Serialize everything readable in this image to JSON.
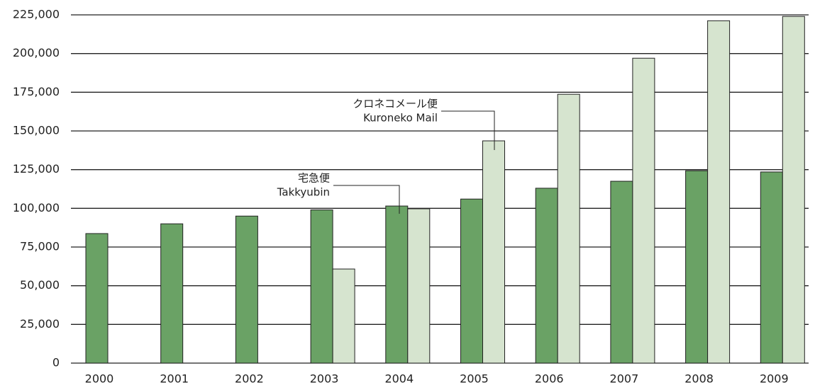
{
  "chart_data": {
    "type": "bar",
    "categories": [
      "2000",
      "2001",
      "2002",
      "2003",
      "2004",
      "2005",
      "2006",
      "2007",
      "2008",
      "2009"
    ],
    "series": [
      {
        "name": "宅急便",
        "name_en": "Takkyubin",
        "color": "#6aa265",
        "values": [
          83700,
          90000,
          95000,
          99000,
          101500,
          106000,
          113000,
          117500,
          124300,
          123500
        ]
      },
      {
        "name": "クロネコメール便",
        "name_en": "Kuroneko Mail",
        "color": "#d6e4cf",
        "values": [
          null,
          null,
          null,
          60800,
          99700,
          143600,
          173700,
          197000,
          221200,
          224000
        ]
      }
    ],
    "ylim": [
      0,
      225000
    ],
    "yticks": [
      0,
      {
        "value": 25000,
        "label": "25,000"
      },
      {
        "value": 50000,
        "label": "50,000"
      },
      {
        "value": 75000,
        "label": "75,000"
      },
      {
        "value": 100000,
        "label": "100,000"
      },
      {
        "value": 125000,
        "label": "125,000"
      },
      {
        "value": 150000,
        "label": "150,000"
      },
      {
        "value": 175000,
        "label": "175,000"
      },
      {
        "value": 200000,
        "label": "200,000"
      },
      {
        "value": 225000,
        "label": "225,000"
      }
    ],
    "grid": true
  }
}
